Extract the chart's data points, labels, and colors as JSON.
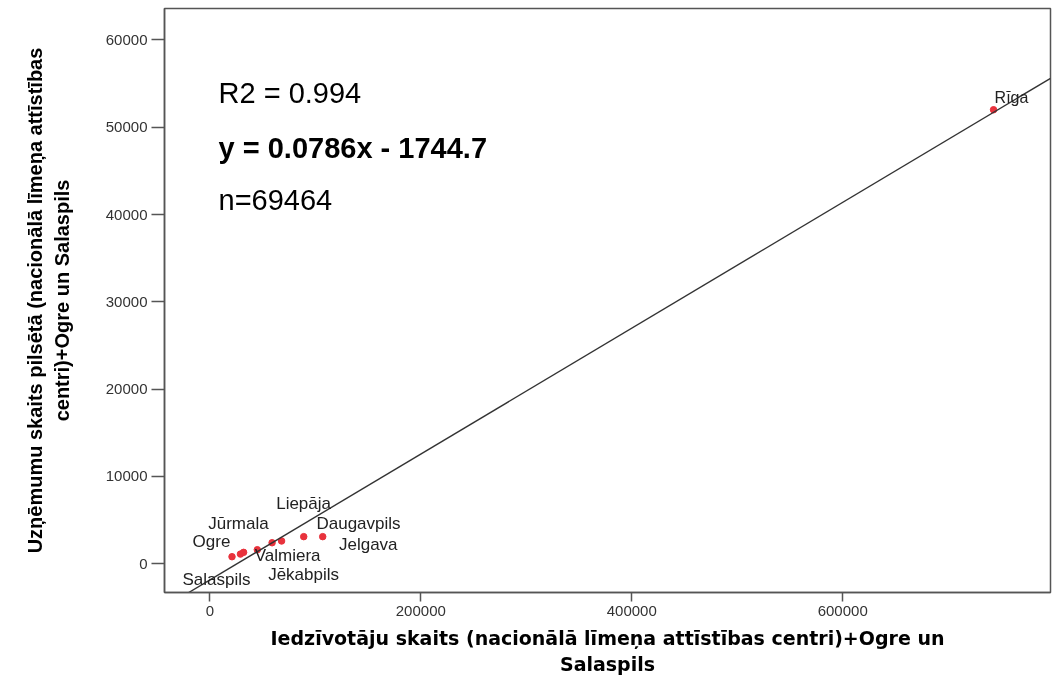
{
  "chart_data": {
    "type": "scatter",
    "xlabel": "Iedzīvotāju skaits (nacionālā līmeņa attīstības centri)+Ogre un Salaspils",
    "ylabel": "Uzņēmumu skaits pilsētā (nacionālā līmeņa attīstības centri)+Ogre un Salaspils",
    "xlim": [
      -43000,
      797000
    ],
    "ylim": [
      -3300,
      63600
    ],
    "xticks": [
      0,
      200000,
      400000,
      600000
    ],
    "yticks": [
      0,
      10000,
      20000,
      30000,
      40000,
      50000,
      60000
    ],
    "grid": false,
    "series": [
      {
        "color": "#e8323c",
        "marker": "circle",
        "x": [
          21000,
          29000,
          32000,
          45000,
          59000,
          68000,
          89000,
          107000,
          743000
        ],
        "values": [
          800,
          1100,
          1300,
          1600,
          2400,
          2600,
          3100,
          3100,
          52000
        ]
      },
      {
        "type": "line",
        "color": "#333333",
        "x": [
          -20000,
          797000
        ],
        "values": [
          -3300,
          55600
        ]
      }
    ],
    "annotations": [
      "R2 = 0.994",
      "y = 0.0786x - 1744.7",
      "n=69464",
      "Rīga",
      "Liepāja",
      "Jūrmala",
      "Daugavpils",
      "Ogre",
      "Jelgava",
      "Valmiera",
      "Salaspils",
      "Jēkabpils"
    ]
  }
}
